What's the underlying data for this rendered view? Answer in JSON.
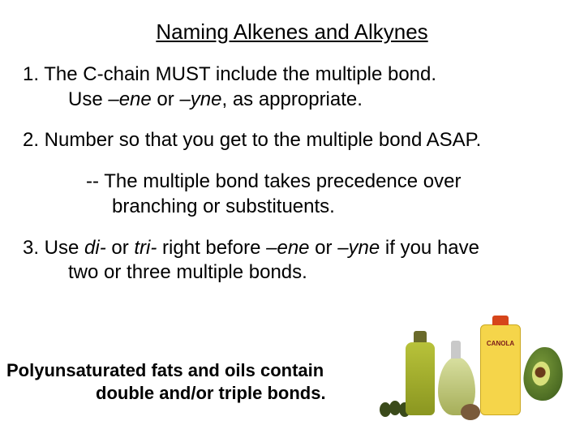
{
  "title": "Naming Alkenes and Alkynes",
  "rule1": {
    "line1_pre": "1. The C-chain MUST include the multiple bond.",
    "line2_pre": "Use ",
    "suffix1": "–ene",
    "mid": " or ",
    "suffix2": "–yne",
    "line2_post": ", as appropriate."
  },
  "rule2": "2. Number so that you get to the multiple bond ASAP.",
  "subrule": {
    "line1": "-- The multiple bond takes precedence over",
    "line2": "branching or substituents."
  },
  "rule3": {
    "pre": "3. Use ",
    "di": "di-",
    "mid1": " or ",
    "tri": "tri-",
    "mid2": " right before ",
    "ene": "–ene",
    "mid3": " or ",
    "yne": "–yne",
    "post1": " if you have",
    "line2": "two or three multiple bonds."
  },
  "footnote": {
    "line1": "Polyunsaturated fats and oils contain",
    "line2": "double and/or triple bonds."
  },
  "image": {
    "canola_label": "CANOLA",
    "colors": {
      "bottle": "#8a9620",
      "canola": "#f5d54a",
      "avocado": "#3a5a1a",
      "olive": "#3a4a1a"
    }
  }
}
